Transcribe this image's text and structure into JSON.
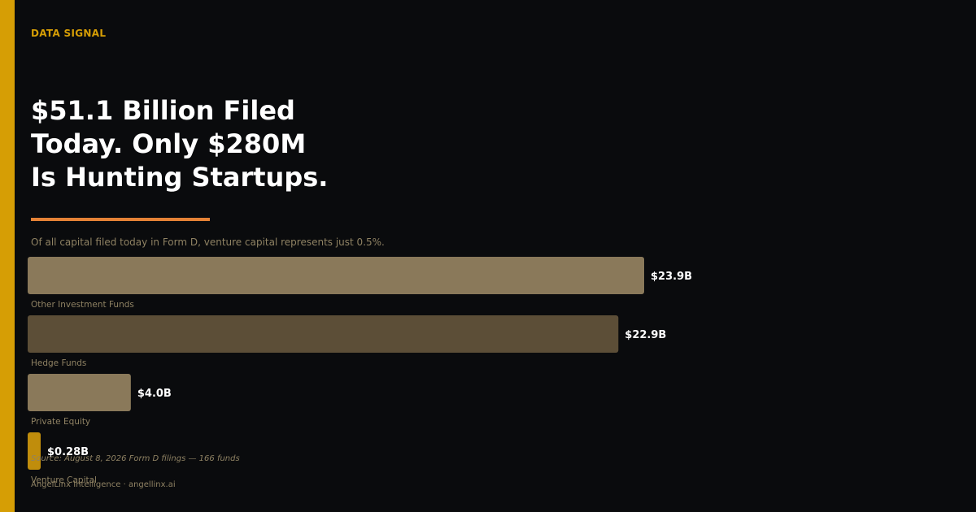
{
  "header": {
    "kicker": "DATA SIGNAL",
    "headline_lines": [
      "$51.1 Billion Filed",
      "Today. Only $280M",
      "Is Hunting Startups."
    ],
    "subtitle": "Of all capital filed today in Form D, venture capital represents just 0.5%."
  },
  "chart_data": {
    "type": "bar",
    "orientation": "horizontal",
    "title": "",
    "xlabel": "",
    "ylabel": "",
    "categories": [
      "Other Investment Funds",
      "Hedge Funds",
      "Private Equity",
      "Venture Capital"
    ],
    "values": [
      23.9,
      22.9,
      4.0,
      0.28
    ],
    "value_labels": [
      "$23.9B",
      "$22.9B",
      "$4.0B",
      "$0.28B"
    ],
    "units": "billions USD",
    "xlim": [
      0,
      23.9
    ],
    "grid": false,
    "legend": "none",
    "bar_colors": [
      "#8a795a",
      "#5c4e37",
      "#8a795a",
      "#c08d0c"
    ]
  },
  "footer": {
    "source": "Source: August 8, 2026 Form D filings — 166 funds",
    "brand": "AngelLinx Intelligence · angellinx.ai"
  },
  "colors": {
    "background": "#0a0b0d",
    "accent": "#d69e05",
    "rule": "#e58236",
    "muted_text": "#8f8263",
    "value_text": "#ffffff"
  }
}
